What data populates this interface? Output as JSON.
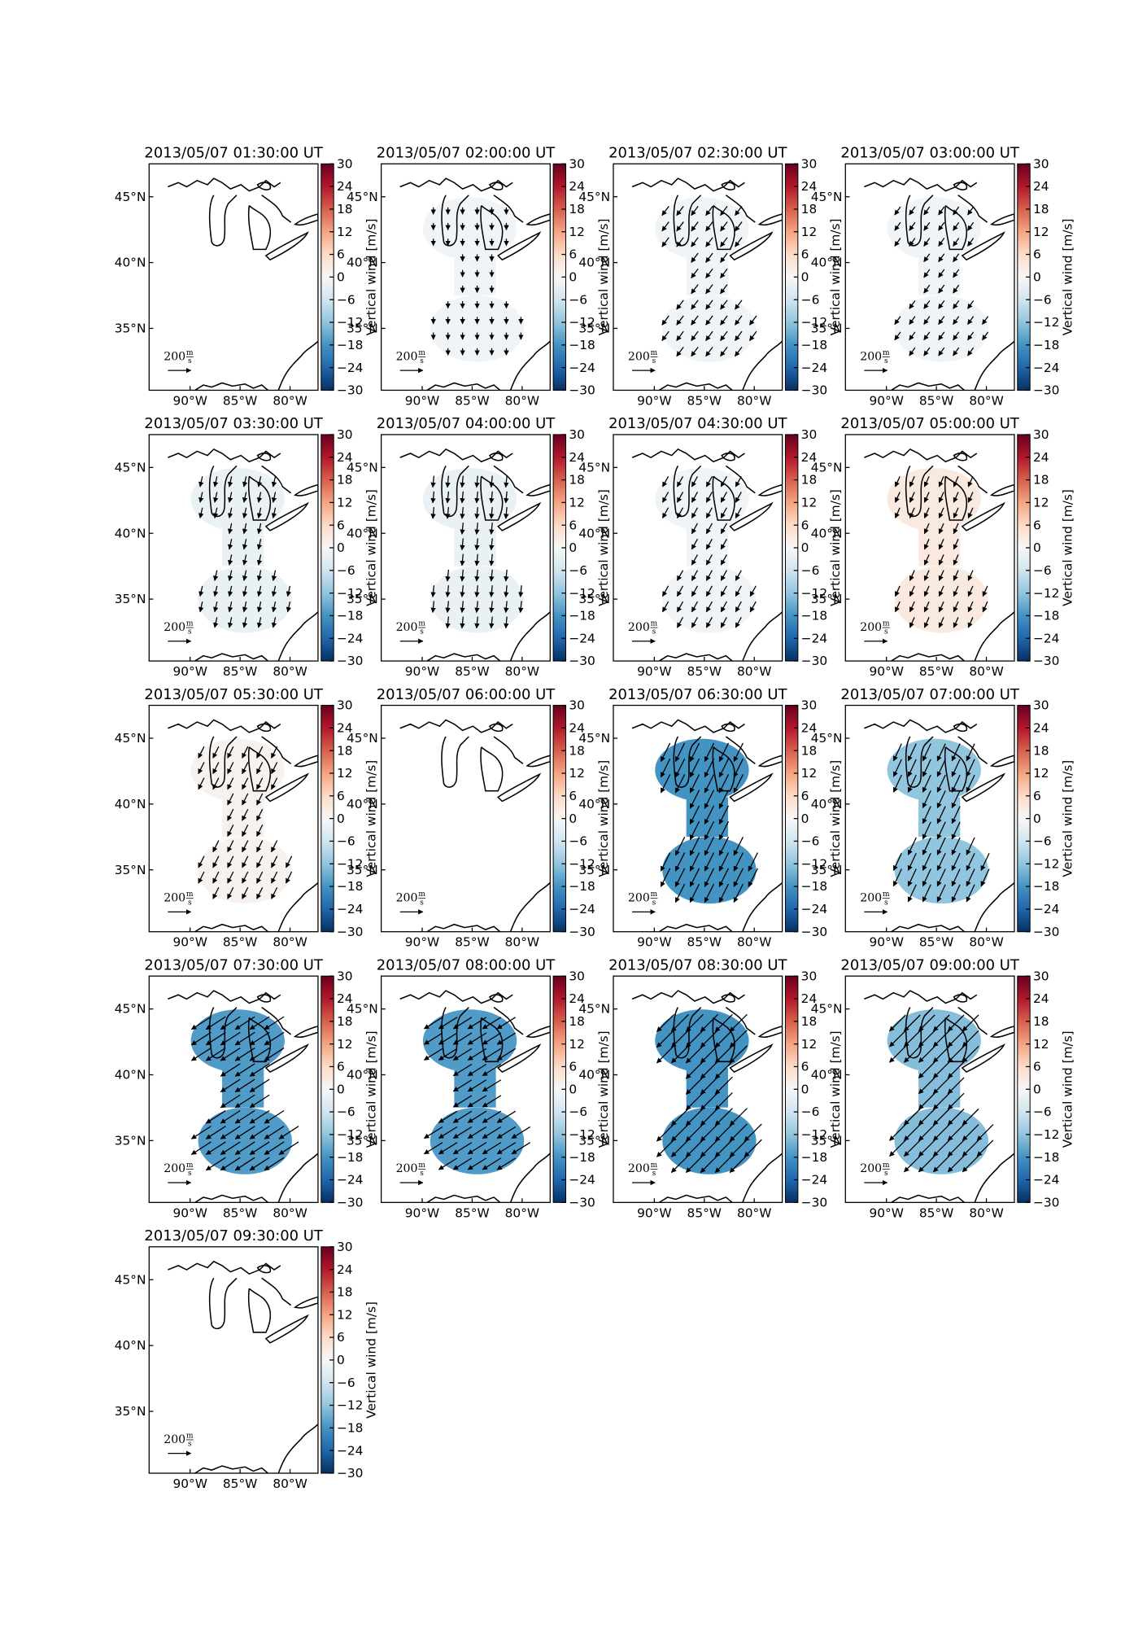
{
  "figure": {
    "colorbar": {
      "label": "Vertical wind [m/s]",
      "clim": [
        -30,
        30
      ],
      "ticks": [
        30,
        24,
        18,
        12,
        6,
        0,
        {
          "value": -6,
          "label": "−6"
        },
        {
          "value": -12,
          "label": "−12"
        },
        {
          "value": -18,
          "label": "−18"
        },
        {
          "value": -24,
          "label": "−24"
        },
        {
          "value": -30,
          "label": "−30"
        }
      ],
      "colormap": [
        "#053061",
        "#2166ac",
        "#4393c3",
        "#92c5de",
        "#d1e5f0",
        "#f7f7f7",
        "#fddbc7",
        "#f4a582",
        "#d6604d",
        "#b2182b",
        "#67001f"
      ]
    },
    "xlim": [
      -94.1,
      -77.2
    ],
    "ylim": [
      30.3,
      47.5
    ],
    "lon_ticks": [
      {
        "value": -90,
        "label": "90°W"
      },
      {
        "value": -85,
        "label": "85°W"
      },
      {
        "value": -80,
        "label": "80°W"
      }
    ],
    "lat_ticks": [
      {
        "value": 45,
        "label": "45°N"
      },
      {
        "value": 40,
        "label": "40°N"
      },
      {
        "value": 35,
        "label": "35°N"
      }
    ],
    "scale": {
      "value": 200,
      "unit_num": "m",
      "unit_den": "s"
    },
    "panels": [
      {
        "title": "2013/05/07 01:30:00 UT",
        "vertical_wind": null,
        "u": null,
        "v": null
      },
      {
        "title": "2013/05/07 02:00:00 UT",
        "vertical_wind": -1,
        "u": 0,
        "v": -60
      },
      {
        "title": "2013/05/07 02:30:00 UT",
        "vertical_wind": -1,
        "u": -60,
        "v": -80
      },
      {
        "title": "2013/05/07 03:00:00 UT",
        "vertical_wind": -1,
        "u": -50,
        "v": -70
      },
      {
        "title": "2013/05/07 03:30:00 UT",
        "vertical_wind": -2,
        "u": -20,
        "v": -90
      },
      {
        "title": "2013/05/07 04:00:00 UT",
        "vertical_wind": -2,
        "u": -10,
        "v": -100
      },
      {
        "title": "2013/05/07 04:30:00 UT",
        "vertical_wind": -1,
        "u": -50,
        "v": -90
      },
      {
        "title": "2013/05/07 05:00:00 UT",
        "vertical_wind": 3,
        "u": -40,
        "v": -90
      },
      {
        "title": "2013/05/07 05:30:00 UT",
        "vertical_wind": 1,
        "u": -50,
        "v": -100
      },
      {
        "title": "2013/05/07 06:00:00 UT",
        "vertical_wind": null,
        "u": null,
        "v": null
      },
      {
        "title": "2013/05/07 06:30:00 UT",
        "vertical_wind": -18,
        "u": -80,
        "v": -160
      },
      {
        "title": "2013/05/07 07:00:00 UT",
        "vertical_wind": -12,
        "u": -70,
        "v": -150
      },
      {
        "title": "2013/05/07 07:30:00 UT",
        "vertical_wind": -17,
        "u": -170,
        "v": -110
      },
      {
        "title": "2013/05/07 08:00:00 UT",
        "vertical_wind": -17,
        "u": -160,
        "v": -100
      },
      {
        "title": "2013/05/07 08:30:00 UT",
        "vertical_wind": -18,
        "u": -150,
        "v": -150
      },
      {
        "title": "2013/05/07 09:00:00 UT",
        "vertical_wind": -13,
        "u": -140,
        "v": -140
      },
      {
        "title": "2013/05/07 09:30:00 UT",
        "vertical_wind": null,
        "u": null,
        "v": null
      }
    ]
  }
}
